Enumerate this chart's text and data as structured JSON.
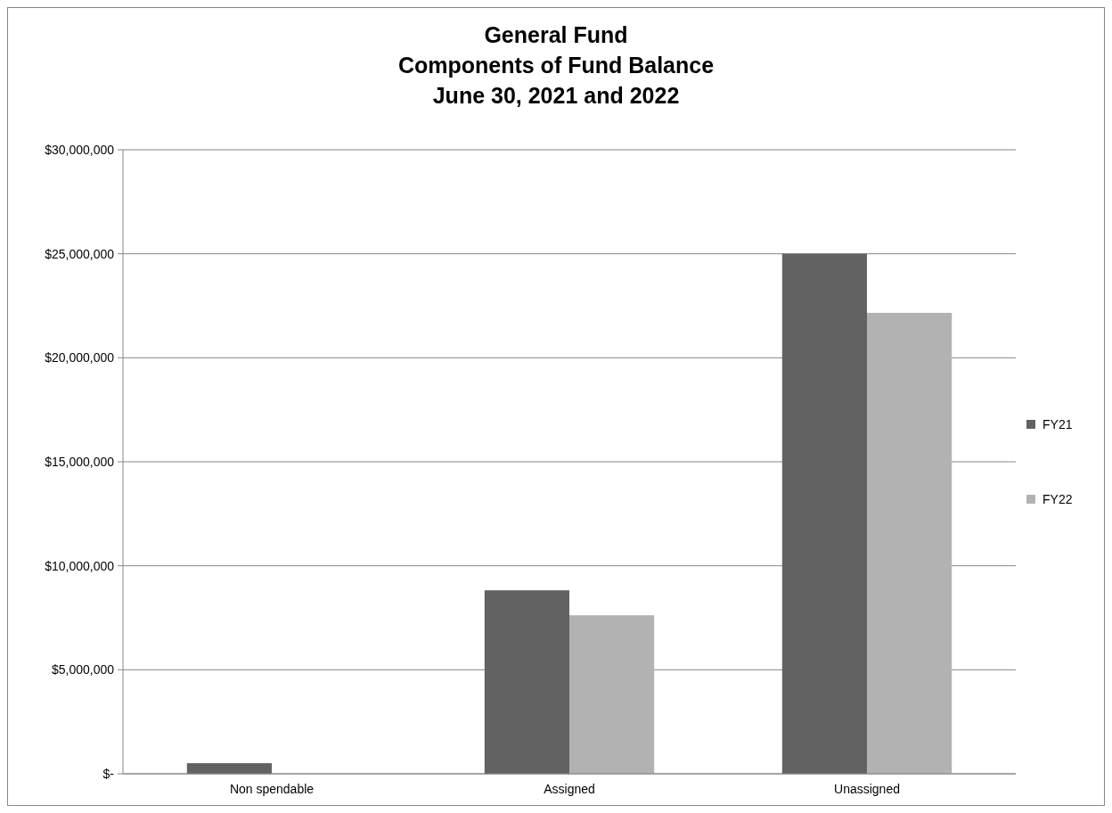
{
  "chart_data": {
    "type": "bar",
    "title": "General Fund\nComponents of Fund Balance\nJune 30, 2021 and 2022",
    "categories": [
      "Non spendable",
      "Assigned",
      "Unassigned"
    ],
    "series": [
      {
        "name": "FY21",
        "color": "#626262",
        "values": [
          510000,
          8820000,
          25000000
        ]
      },
      {
        "name": "FY22",
        "color": "#b2b2b2",
        "values": [
          0,
          7620000,
          22160000
        ]
      }
    ],
    "ylim": [
      0,
      30000000
    ],
    "yticks": [
      {
        "value": 0,
        "label": "$-"
      },
      {
        "value": 5000000,
        "label": "$5,000,000"
      },
      {
        "value": 10000000,
        "label": "$10,000,000"
      },
      {
        "value": 15000000,
        "label": "$15,000,000"
      },
      {
        "value": 20000000,
        "label": "$20,000,000"
      },
      {
        "value": 25000000,
        "label": "$25,000,000"
      },
      {
        "value": 30000000,
        "label": "$30,000,000"
      }
    ],
    "grid": "y",
    "legend": "right"
  }
}
